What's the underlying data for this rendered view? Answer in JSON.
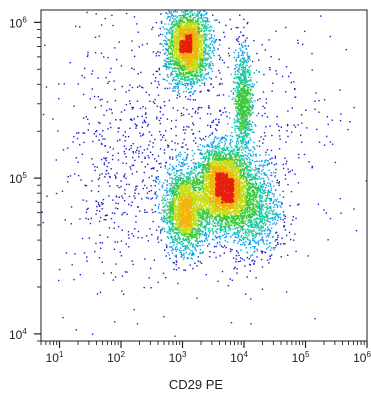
{
  "chart_data": {
    "type": "scatter",
    "style": "density-dot-plot",
    "xlabel": "CD29 PE",
    "ylabel": "",
    "x_scale": "log",
    "y_scale": "log",
    "xlim": [
      5,
      1000000
    ],
    "ylim": [
      9000,
      1200000
    ],
    "x_ticks": [
      {
        "base": "10",
        "exp": "1",
        "value": 10
      },
      {
        "base": "10",
        "exp": "2",
        "value": 100
      },
      {
        "base": "10",
        "exp": "3",
        "value": 1000
      },
      {
        "base": "10",
        "exp": "4",
        "value": 10000
      },
      {
        "base": "10",
        "exp": "5",
        "value": 100000
      },
      {
        "base": "10",
        "exp": "6",
        "value": 1000000
      }
    ],
    "y_ticks": [
      {
        "base": "10",
        "exp": "4",
        "value": 10000
      },
      {
        "base": "10",
        "exp": "5",
        "value": 100000
      },
      {
        "base": "10",
        "exp": "6",
        "value": 1000000
      }
    ],
    "grid": false,
    "colormap": [
      "#1d1dc8",
      "#0aa0e6",
      "#19c8a0",
      "#3cc83c",
      "#c8dc14",
      "#f0b40a",
      "#e61e0a"
    ],
    "populations": [
      {
        "x_center": 1200,
        "y_center": 720000,
        "x_spread_decades": 0.17,
        "y_spread_decades": 0.12,
        "points": 2600
      },
      {
        "x_center": 4500,
        "y_center": 88000,
        "x_spread_decades": 0.2,
        "y_spread_decades": 0.13,
        "points": 3600
      },
      {
        "x_center": 1100,
        "y_center": 63000,
        "x_spread_decades": 0.17,
        "y_spread_decades": 0.13,
        "points": 2200
      },
      {
        "x_center": 9500,
        "y_center": 310000,
        "x_spread_decades": 0.07,
        "y_spread_decades": 0.17,
        "points": 900
      },
      {
        "x_center": 14000,
        "y_center": 65000,
        "x_spread_decades": 0.22,
        "y_spread_decades": 0.15,
        "points": 1200
      },
      {
        "x_center": 80,
        "y_center": 95000,
        "x_spread_decades": 0.45,
        "y_spread_decades": 0.35,
        "points": 260
      },
      {
        "x_center": 1500,
        "y_center": 180000,
        "x_spread_decades": 1.2,
        "y_spread_decades": 0.45,
        "points": 900
      }
    ]
  }
}
